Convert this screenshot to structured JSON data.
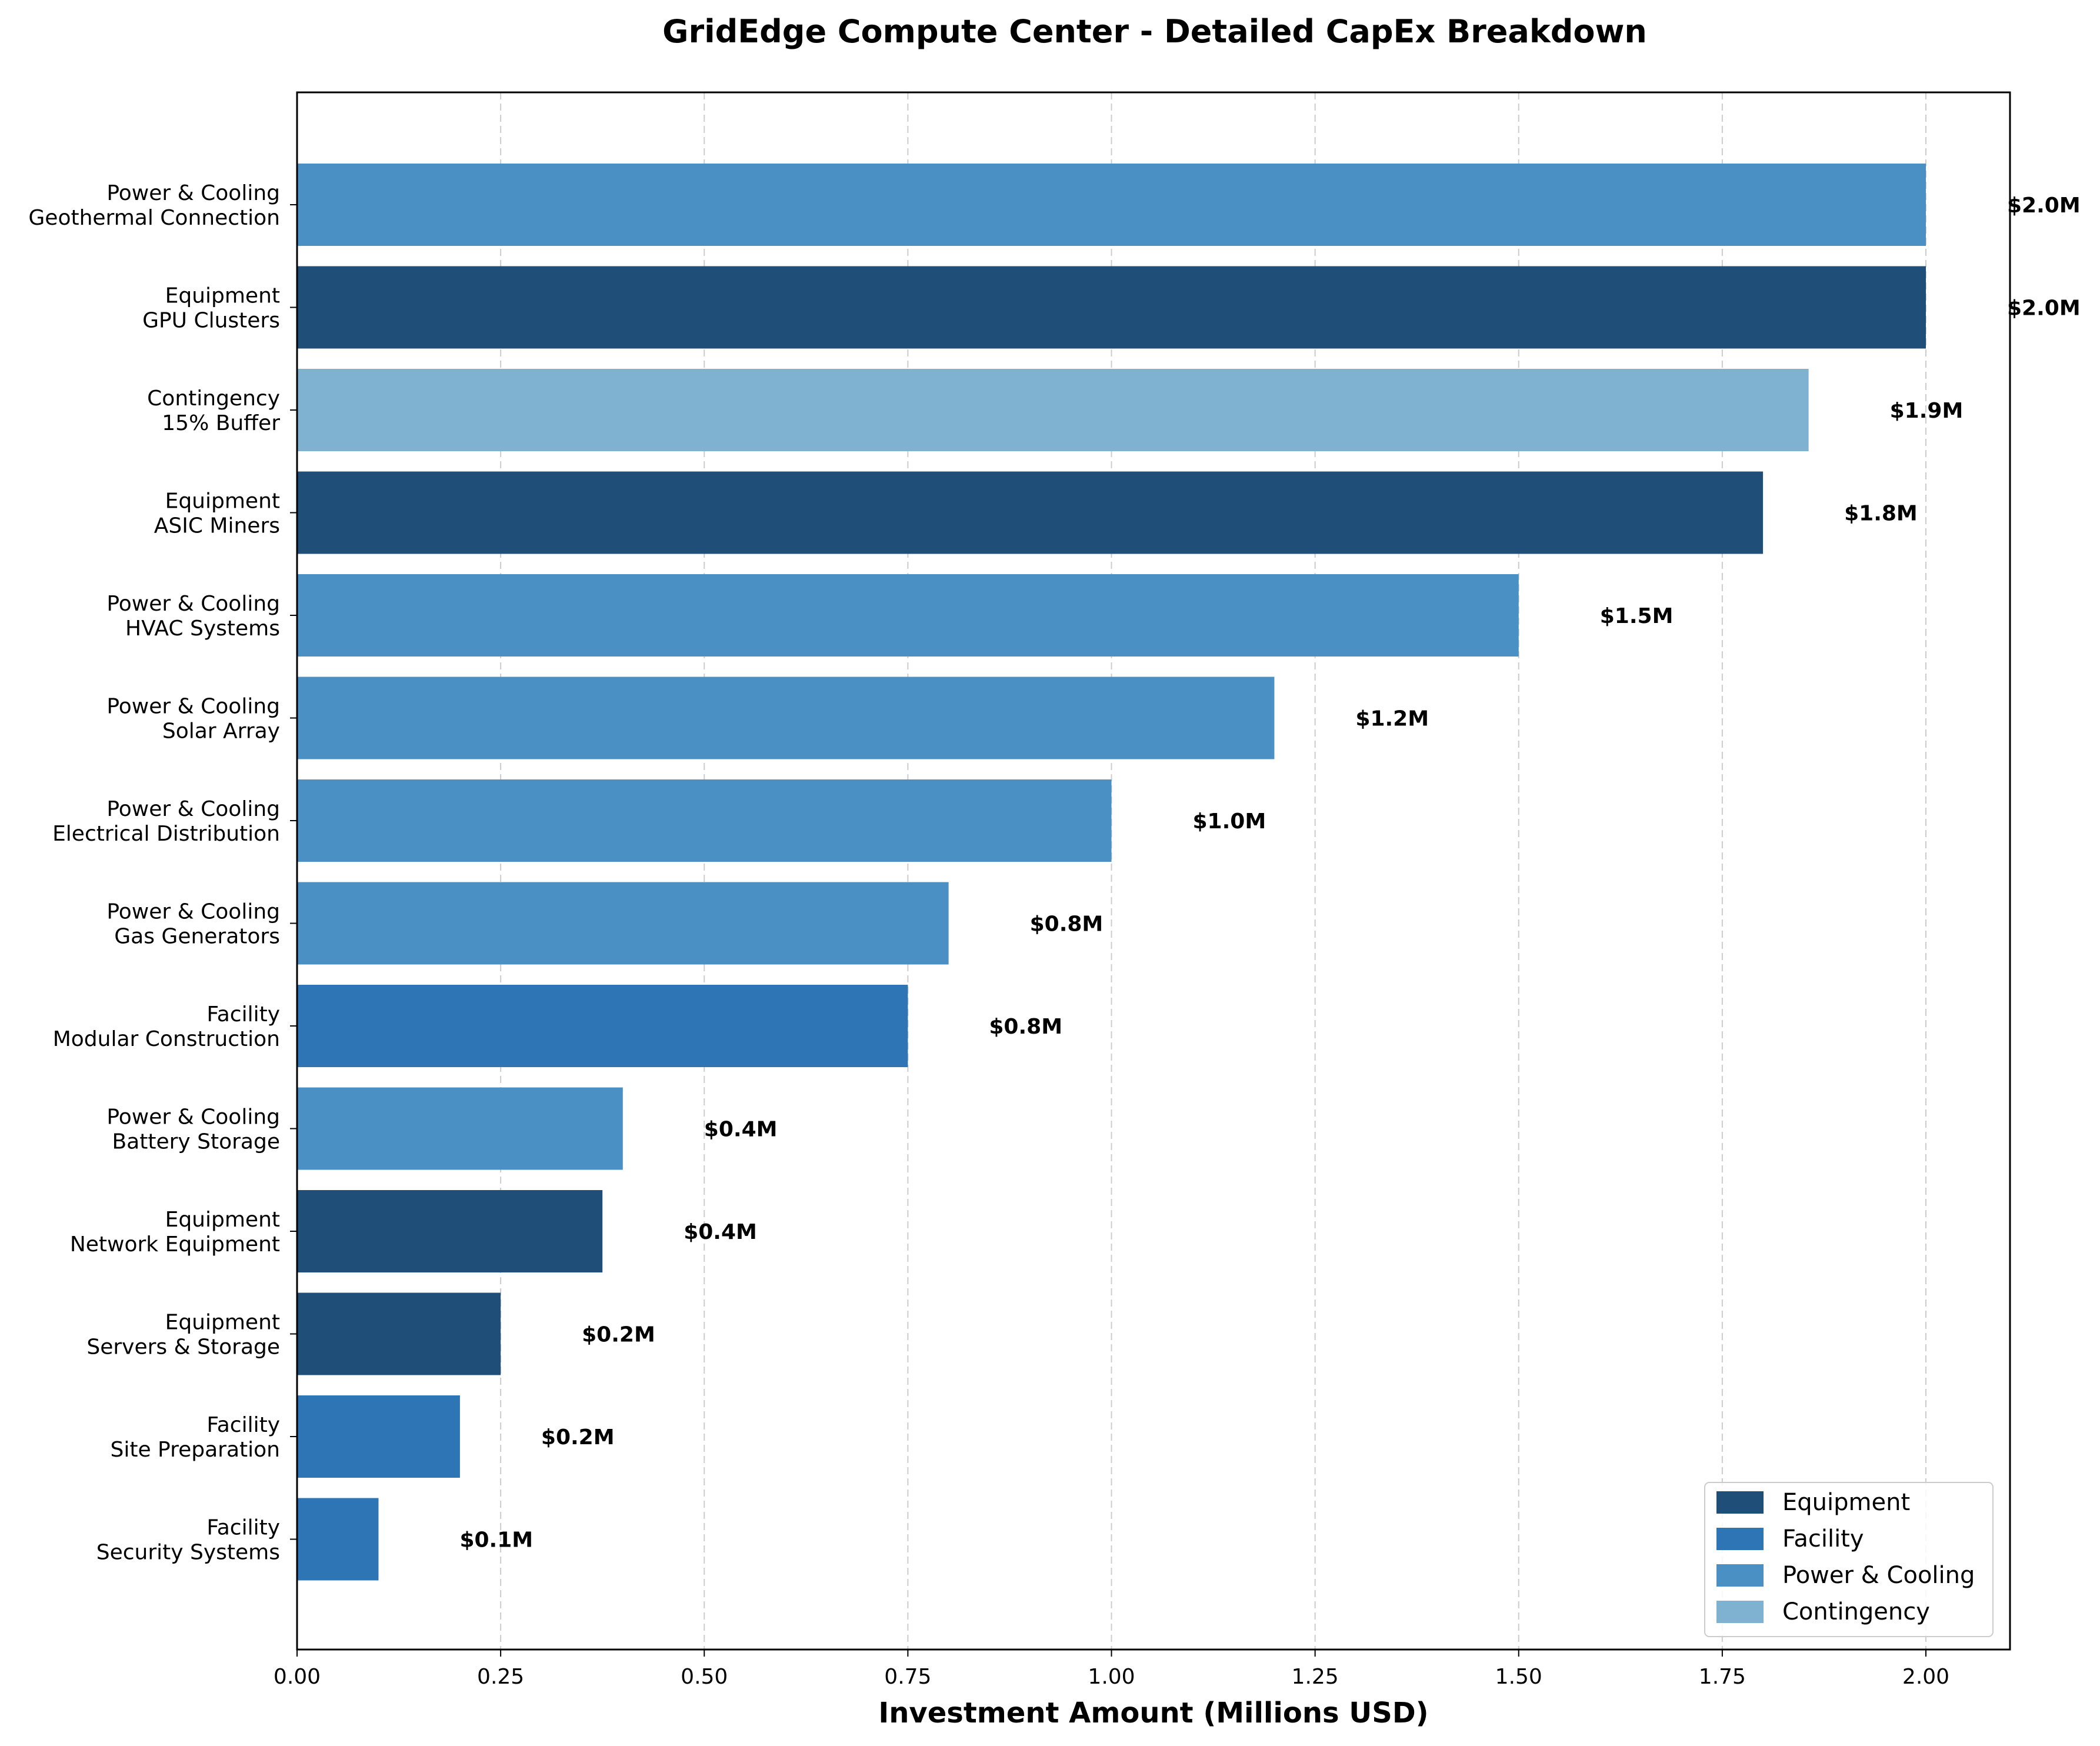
{
  "chart_data": {
    "type": "bar",
    "orientation": "horizontal",
    "title": "GridEdge Compute Center - Detailed CapEx Breakdown",
    "xlabel": "Investment Amount (Millions USD)",
    "ylabel": "",
    "xlim": [
      0,
      2.1
    ],
    "xticks": [
      "0.00",
      "0.25",
      "0.50",
      "0.75",
      "1.00",
      "1.25",
      "1.50",
      "1.75",
      "2.00"
    ],
    "grid": "x-axis dashed",
    "legend_position": "bottom-right",
    "colors": {
      "Equipment": "#1f4e79",
      "Facility": "#2e75b6",
      "Power & Cooling": "#4a90c4",
      "Contingency": "#7fb2d1"
    },
    "legend": [
      "Equipment",
      "Facility",
      "Power & Cooling",
      "Contingency"
    ],
    "bars": [
      {
        "category": "Power & Cooling",
        "item": "Geothermal Connection",
        "value": 2.0,
        "label": "$2.0M"
      },
      {
        "category": "Equipment",
        "item": "GPU Clusters",
        "value": 2.0,
        "label": "$2.0M"
      },
      {
        "category": "Contingency",
        "item": "15% Buffer",
        "value": 1.856,
        "label": "$1.9M"
      },
      {
        "category": "Equipment",
        "item": "ASIC Miners",
        "value": 1.8,
        "label": "$1.8M"
      },
      {
        "category": "Power & Cooling",
        "item": "HVAC Systems",
        "value": 1.5,
        "label": "$1.5M"
      },
      {
        "category": "Power & Cooling",
        "item": "Solar Array",
        "value": 1.2,
        "label": "$1.2M"
      },
      {
        "category": "Power & Cooling",
        "item": "Electrical Distribution",
        "value": 1.0,
        "label": "$1.0M"
      },
      {
        "category": "Power & Cooling",
        "item": "Gas Generators",
        "value": 0.8,
        "label": "$0.8M"
      },
      {
        "category": "Facility",
        "item": "Modular Construction",
        "value": 0.75,
        "label": "$0.8M"
      },
      {
        "category": "Power & Cooling",
        "item": "Battery Storage",
        "value": 0.4,
        "label": "$0.4M"
      },
      {
        "category": "Equipment",
        "item": "Network Equipment",
        "value": 0.375,
        "label": "$0.4M"
      },
      {
        "category": "Equipment",
        "item": "Servers & Storage",
        "value": 0.25,
        "label": "$0.2M"
      },
      {
        "category": "Facility",
        "item": "Site Preparation",
        "value": 0.2,
        "label": "$0.2M"
      },
      {
        "category": "Facility",
        "item": "Security Systems",
        "value": 0.1,
        "label": "$0.1M"
      }
    ]
  }
}
